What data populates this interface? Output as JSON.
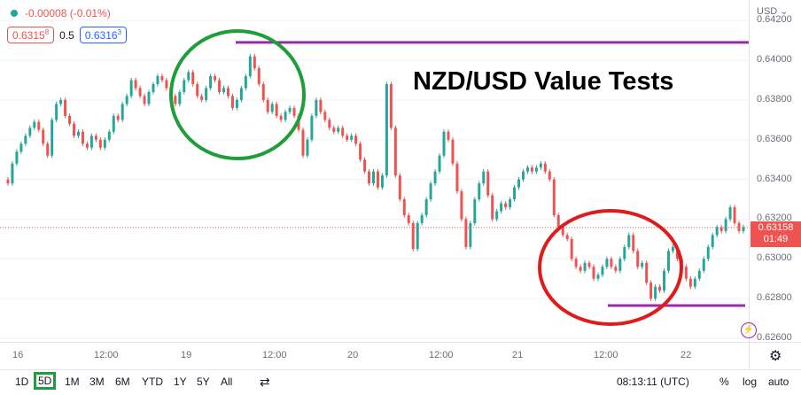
{
  "legend": {
    "change": "-0.00008 (-0.01%)",
    "bid": "0.6315",
    "bid_sup": "8",
    "spread": "0.5",
    "ask": "0.6316",
    "ask_sup": "3"
  },
  "annotation_title": "NZD/USD Value Tests",
  "price_axis": {
    "currency": "USD",
    "currency_icon": "chevron-down-icon",
    "ticks": [
      "0.64200",
      "0.64000",
      "0.63800",
      "0.63600",
      "0.63400",
      "0.63200",
      "0.63000",
      "0.62800",
      "0.62600"
    ],
    "current_price": "0.63158",
    "countdown": "01:49"
  },
  "time_axis": {
    "ticks": [
      "16",
      "12:00",
      "19",
      "12:00",
      "20",
      "12:00",
      "21",
      "12:00",
      "22"
    ]
  },
  "bottom_bar": {
    "timeframes": [
      "1D",
      "5D",
      "1M",
      "3M",
      "6M",
      "YTD",
      "1Y",
      "5Y",
      "All"
    ],
    "active_timeframe": "5D",
    "time": "08:13:11 (UTC)",
    "percent": "%",
    "log": "log",
    "auto": "auto"
  },
  "colors": {
    "up": "#26a69a",
    "down": "#ef5350",
    "resistance_line": "#9c27b0",
    "circle_top": "#1e9e38",
    "circle_bottom": "#e01b1b",
    "price_tag": "#ef5350"
  },
  "chart_data": {
    "type": "line",
    "title": "NZD/USD Value Tests",
    "xlabel": "",
    "ylabel": "",
    "ylim": [
      0.626,
      0.6425
    ],
    "x_ticks": [
      "16",
      "12:00",
      "19",
      "12:00",
      "20",
      "12:00",
      "21",
      "12:00",
      "22"
    ],
    "series": [
      {
        "points": [
          [
            0,
            0.634
          ],
          [
            3,
            0.6338
          ],
          [
            6,
            0.6348
          ],
          [
            9,
            0.6354
          ],
          [
            12,
            0.6358
          ],
          [
            15,
            0.6362
          ],
          [
            18,
            0.6366
          ],
          [
            21,
            0.6369
          ],
          [
            24,
            0.6365
          ],
          [
            27,
            0.6358
          ],
          [
            30,
            0.6352
          ],
          [
            33,
            0.637
          ],
          [
            36,
            0.6378
          ],
          [
            39,
            0.638
          ],
          [
            42,
            0.6372
          ],
          [
            45,
            0.6368
          ],
          [
            48,
            0.6362
          ],
          [
            51,
            0.6364
          ],
          [
            54,
            0.6358
          ],
          [
            57,
            0.6356
          ],
          [
            60,
            0.6362
          ],
          [
            63,
            0.636
          ],
          [
            66,
            0.6356
          ],
          [
            69,
            0.636
          ],
          [
            72,
            0.6364
          ],
          [
            75,
            0.6372
          ],
          [
            78,
            0.637
          ],
          [
            81,
            0.6378
          ],
          [
            84,
            0.6382
          ],
          [
            87,
            0.639
          ],
          [
            90,
            0.6386
          ],
          [
            93,
            0.6382
          ],
          [
            96,
            0.6378
          ],
          [
            99,
            0.6384
          ],
          [
            102,
            0.6388
          ],
          [
            105,
            0.6392
          ],
          [
            108,
            0.639
          ],
          [
            111,
            0.6386
          ],
          [
            114,
            0.6382
          ],
          [
            117,
            0.6378
          ],
          [
            120,
            0.6384
          ],
          [
            123,
            0.639
          ],
          [
            126,
            0.6394
          ],
          [
            129,
            0.6388
          ],
          [
            132,
            0.6382
          ],
          [
            135,
            0.638
          ],
          [
            138,
            0.6386
          ],
          [
            141,
            0.6392
          ],
          [
            144,
            0.639
          ],
          [
            147,
            0.6384
          ],
          [
            150,
            0.6386
          ],
          [
            153,
            0.6382
          ],
          [
            156,
            0.6376
          ],
          [
            159,
            0.638
          ],
          [
            162,
            0.6386
          ],
          [
            165,
            0.6392
          ],
          [
            168,
            0.6402
          ],
          [
            171,
            0.6396
          ],
          [
            174,
            0.6388
          ],
          [
            177,
            0.638
          ],
          [
            180,
            0.6374
          ],
          [
            183,
            0.6378
          ],
          [
            186,
            0.6372
          ],
          [
            189,
            0.637
          ],
          [
            192,
            0.6374
          ],
          [
            195,
            0.6376
          ],
          [
            198,
            0.6372
          ],
          [
            201,
            0.6365
          ],
          [
            204,
            0.6352
          ],
          [
            207,
            0.636
          ],
          [
            210,
            0.6372
          ],
          [
            213,
            0.638
          ],
          [
            216,
            0.6374
          ],
          [
            219,
            0.637
          ],
          [
            222,
            0.6366
          ],
          [
            225,
            0.6364
          ],
          [
            228,
            0.6366
          ],
          [
            231,
            0.6362
          ],
          [
            234,
            0.636
          ],
          [
            237,
            0.6362
          ],
          [
            240,
            0.6358
          ],
          [
            243,
            0.635
          ],
          [
            246,
            0.6344
          ],
          [
            249,
            0.6338
          ],
          [
            252,
            0.6344
          ],
          [
            255,
            0.6336
          ],
          [
            258,
            0.6342
          ],
          [
            261,
            0.6388
          ],
          [
            264,
            0.6366
          ],
          [
            267,
            0.6342
          ],
          [
            270,
            0.633
          ],
          [
            273,
            0.6322
          ],
          [
            276,
            0.6318
          ],
          [
            279,
            0.6305
          ],
          [
            282,
            0.6318
          ],
          [
            285,
            0.6322
          ],
          [
            288,
            0.633
          ],
          [
            291,
            0.6338
          ],
          [
            294,
            0.6344
          ],
          [
            297,
            0.6352
          ],
          [
            300,
            0.6364
          ],
          [
            303,
            0.636
          ],
          [
            306,
            0.6348
          ],
          [
            309,
            0.6334
          ],
          [
            312,
            0.632
          ],
          [
            315,
            0.6306
          ],
          [
            318,
            0.6318
          ],
          [
            321,
            0.633
          ],
          [
            324,
            0.6338
          ],
          [
            327,
            0.6344
          ],
          [
            330,
            0.6332
          ],
          [
            333,
            0.632
          ],
          [
            336,
            0.6324
          ],
          [
            339,
            0.6328
          ],
          [
            342,
            0.6326
          ],
          [
            345,
            0.633
          ],
          [
            348,
            0.6336
          ],
          [
            351,
            0.634
          ],
          [
            354,
            0.6344
          ],
          [
            357,
            0.6346
          ],
          [
            360,
            0.6344
          ],
          [
            363,
            0.6346
          ],
          [
            366,
            0.6348
          ],
          [
            369,
            0.6344
          ],
          [
            372,
            0.634
          ],
          [
            375,
            0.6322
          ],
          [
            378,
            0.6316
          ],
          [
            381,
            0.6312
          ],
          [
            384,
            0.631
          ],
          [
            387,
            0.63
          ],
          [
            390,
            0.6296
          ],
          [
            393,
            0.6294
          ],
          [
            396,
            0.6298
          ],
          [
            399,
            0.6296
          ],
          [
            402,
            0.629
          ],
          [
            405,
            0.6292
          ],
          [
            408,
            0.6296
          ],
          [
            411,
            0.63
          ],
          [
            414,
            0.6296
          ],
          [
            417,
            0.6294
          ],
          [
            420,
            0.63
          ],
          [
            423,
            0.6306
          ],
          [
            426,
            0.6312
          ],
          [
            429,
            0.6304
          ],
          [
            432,
            0.6296
          ],
          [
            435,
            0.6298
          ],
          [
            438,
            0.6288
          ],
          [
            441,
            0.628
          ],
          [
            444,
            0.6286
          ],
          [
            447,
            0.6284
          ],
          [
            450,
            0.6294
          ],
          [
            453,
            0.6304
          ],
          [
            456,
            0.6306
          ],
          [
            459,
            0.63
          ],
          [
            462,
            0.6296
          ],
          [
            465,
            0.629
          ],
          [
            468,
            0.6286
          ],
          [
            471,
            0.629
          ],
          [
            474,
            0.6294
          ],
          [
            477,
            0.63
          ],
          [
            480,
            0.6306
          ],
          [
            483,
            0.6312
          ],
          [
            486,
            0.6316
          ],
          [
            489,
            0.6314
          ],
          [
            492,
            0.632
          ],
          [
            495,
            0.6326
          ],
          [
            498,
            0.6318
          ],
          [
            501,
            0.6314
          ],
          [
            504,
            0.6316
          ]
        ]
      }
    ],
    "annotations": [
      {
        "type": "hline",
        "price": 0.6409,
        "label": ""
      },
      {
        "type": "hline",
        "price": 0.62765,
        "label": ""
      },
      {
        "type": "ellipse",
        "label": ""
      },
      {
        "type": "ellipse",
        "label": ""
      }
    ]
  }
}
